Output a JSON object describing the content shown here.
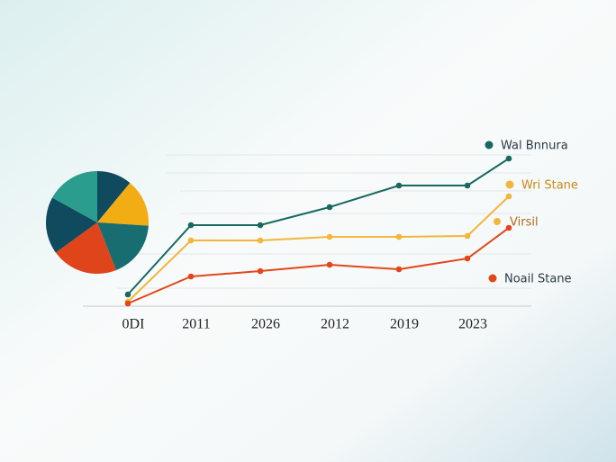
{
  "chart_data": [
    {
      "type": "pie",
      "values": [
        11,
        15,
        18,
        21,
        18,
        17
      ],
      "colors": [
        "#0f4a5e",
        "#f2ad14",
        "#176d6f",
        "#e0441a",
        "#0f4a5e",
        "#2a9d8f"
      ]
    },
    {
      "type": "line",
      "categories": [
        "0DI",
        "2011",
        "2026",
        "2012",
        "2019",
        "2023",
        null
      ],
      "ylim": [
        0,
        180
      ],
      "series": [
        {
          "name": "Wal Bnnura",
          "color": "#17695f",
          "values": [
            13,
            90,
            90,
            110,
            134,
            134,
            164
          ]
        },
        {
          "name": "Wri Stane",
          "color": "#f2b63a",
          "values": [
            5,
            73,
            73,
            77,
            77,
            78,
            122
          ]
        },
        {
          "name": "Noail Stane",
          "color": "#e0481c",
          "values": [
            3,
            33,
            39,
            46,
            41,
            53,
            87
          ]
        }
      ],
      "annotations": [
        {
          "text": "Virsil",
          "color": "#f2b63a"
        }
      ]
    }
  ]
}
